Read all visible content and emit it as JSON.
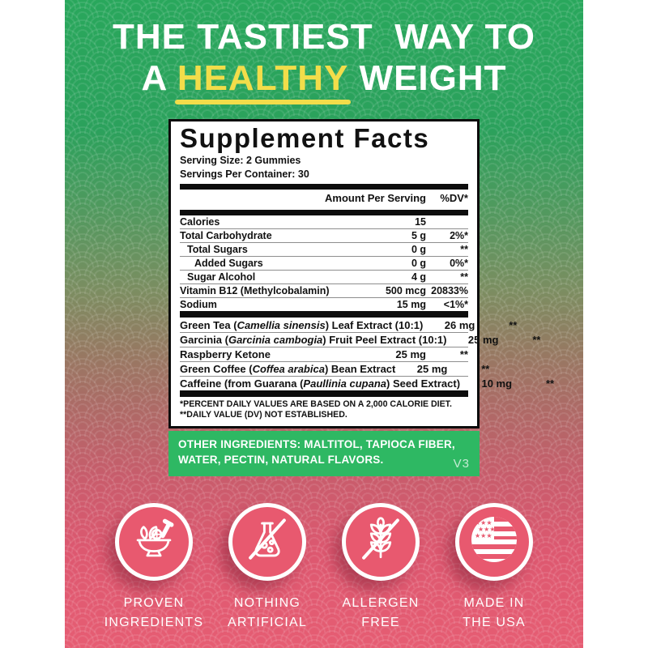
{
  "hero": {
    "line1": "THE TASTIEST  WAY TO",
    "line2_prefix": "A ",
    "line2_highlight": "HEALTHY",
    "line2_suffix": " WEIGHT"
  },
  "panel": {
    "title": "Supplement Facts",
    "serving_size": "Serving Size: 2 Gummies",
    "servings_per_container": "Servings Per Container: 30",
    "col_amount": "Amount Per Serving",
    "col_dv": "%DV*",
    "rows": [
      {
        "name": [
          {
            "t": "Calories"
          }
        ],
        "amount": "15",
        "dv": "",
        "indent": 0
      },
      {
        "name": [
          {
            "t": "Total Carbohydrate"
          }
        ],
        "amount": "5 g",
        "dv": "2%*",
        "indent": 0
      },
      {
        "name": [
          {
            "t": "Total Sugars"
          }
        ],
        "amount": "0 g",
        "dv": "**",
        "indent": 1
      },
      {
        "name": [
          {
            "t": "Added Sugars"
          }
        ],
        "amount": "0 g",
        "dv": "0%*",
        "indent": 2
      },
      {
        "name": [
          {
            "t": "Sugar Alcohol"
          }
        ],
        "amount": "4 g",
        "dv": "**",
        "indent": 1
      },
      {
        "name": [
          {
            "t": "Vitamin B12 (Methylcobalamin)"
          }
        ],
        "amount": "500 mcg",
        "dv": "20833%",
        "indent": 0
      },
      {
        "name": [
          {
            "t": "Sodium"
          }
        ],
        "amount": "15 mg",
        "dv": "<1%*",
        "indent": 0
      }
    ],
    "extract_rows": [
      {
        "name": [
          {
            "t": "Green Tea ("
          },
          {
            "t": "Camellia sinensis",
            "i": true
          },
          {
            "t": ") Leaf Extract (10:1)"
          }
        ],
        "amount": "26 mg",
        "dv": "**"
      },
      {
        "name": [
          {
            "t": "Garcinia ("
          },
          {
            "t": "Garcinia cambogia",
            "i": true
          },
          {
            "t": ") Fruit Peel Extract (10:1)"
          }
        ],
        "amount": "25 mg",
        "dv": "**"
      },
      {
        "name": [
          {
            "t": "Raspberry Ketone"
          }
        ],
        "amount": "25 mg",
        "dv": "**"
      },
      {
        "name": [
          {
            "t": "Green Coffee ("
          },
          {
            "t": "Coffea arabica",
            "i": true
          },
          {
            "t": ") Bean Extract"
          }
        ],
        "amount": "25 mg",
        "dv": "**"
      },
      {
        "name": [
          {
            "t": "Caffeine (from Guarana ("
          },
          {
            "t": "Paullinia cupana",
            "i": true
          },
          {
            "t": ") Seed Extract)"
          }
        ],
        "amount": "10 mg",
        "dv": "**"
      }
    ],
    "footnote1": "*PERCENT DAILY VALUES ARE BASED ON A 2,000 CALORIE DIET.",
    "footnote2": "**DAILY VALUE (DV) NOT ESTABLISHED."
  },
  "other_ingredients": {
    "label": "OTHER INGREDIENTS:",
    "text": " MALTITOL, TAPIOCA FIBER, WATER, PECTIN, NATURAL FLAVORS.",
    "version": "V3"
  },
  "badges": [
    {
      "icon": "mortar-pestle-icon",
      "line1": "PROVEN",
      "line2": "INGREDIENTS"
    },
    {
      "icon": "no-artificial-flask-icon",
      "line1": "NOTHING",
      "line2": "ARTIFICIAL"
    },
    {
      "icon": "allergen-free-wheat-icon",
      "line1": "ALLERGEN",
      "line2": "FREE"
    },
    {
      "icon": "usa-flag-icon",
      "line1": "MADE IN",
      "line2": "THE USA"
    }
  ],
  "colors": {
    "top_green": "#2aa65c",
    "bottom_pink": "#e25a70",
    "highlight_yellow": "#f2dd4a",
    "ingredients_green": "#2eb863",
    "badge_pink": "#e8596f",
    "panel_bg": "#ffffff",
    "panel_text": "#111111"
  }
}
